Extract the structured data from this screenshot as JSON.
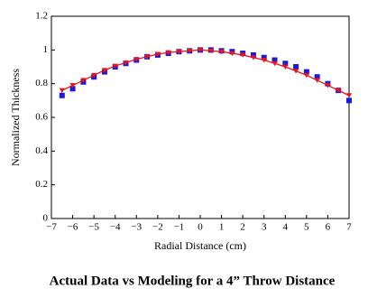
{
  "chart_data": {
    "type": "line",
    "title": "Actual Data vs Modeling for a 4” Throw Distance",
    "x_label": "Radial Distance (cm)",
    "y_label": "Normalized Thickness",
    "x": [
      -6.5,
      -6,
      -5.5,
      -5,
      -4.5,
      -4,
      -3.5,
      -3,
      -2.5,
      -2,
      -1.5,
      -1,
      -0.5,
      0,
      0.5,
      1,
      1.5,
      2,
      2.5,
      3,
      3.5,
      4,
      4.5,
      5,
      5.5,
      6,
      6.5,
      7
    ],
    "series": [
      {
        "color": "#1a1adb",
        "marker": "square",
        "line": false,
        "values": [
          0.73,
          0.77,
          0.81,
          0.84,
          0.87,
          0.9,
          0.92,
          0.94,
          0.96,
          0.97,
          0.98,
          0.99,
          0.995,
          1.0,
          1.0,
          0.995,
          0.99,
          0.98,
          0.97,
          0.955,
          0.94,
          0.92,
          0.9,
          0.87,
          0.84,
          0.8,
          0.76,
          0.7
        ]
      },
      {
        "color": "#e8141e",
        "marker": "triangle",
        "line": true,
        "values": [
          0.76,
          0.79,
          0.82,
          0.85,
          0.88,
          0.905,
          0.925,
          0.945,
          0.96,
          0.975,
          0.985,
          0.99,
          0.995,
          1.0,
          0.995,
          0.99,
          0.98,
          0.97,
          0.955,
          0.94,
          0.92,
          0.9,
          0.875,
          0.85,
          0.82,
          0.79,
          0.76,
          0.73
        ]
      }
    ],
    "xlim": [
      -7,
      7
    ],
    "xticks": [
      {
        "value": -7,
        "label": "−7"
      },
      {
        "value": -6,
        "label": "−6"
      },
      {
        "value": -5,
        "label": "−5"
      },
      {
        "value": -4,
        "label": "−4"
      },
      {
        "value": -3,
        "label": "−3"
      },
      {
        "value": -2,
        "label": "−2"
      },
      {
        "value": -1,
        "label": "−1"
      },
      0,
      1,
      2,
      3,
      4,
      5,
      6,
      7
    ],
    "ylim": [
      0,
      1.2
    ],
    "yticks": [
      0,
      0.2,
      0.4,
      0.6,
      0.8,
      1,
      1.2
    ],
    "grid": false
  }
}
